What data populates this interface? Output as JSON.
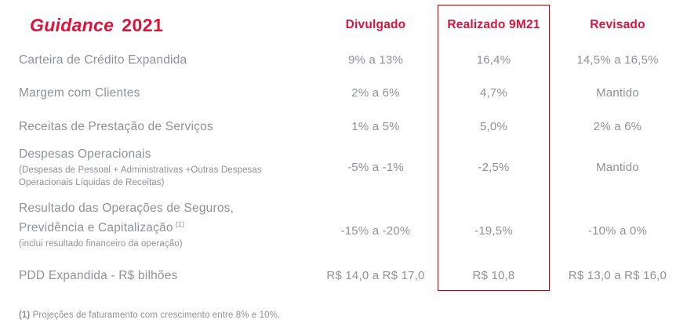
{
  "colors": {
    "accent_red": "#DC143C",
    "box_border_red": "#A01113",
    "text_gray": "#8E9196"
  },
  "title": {
    "brand_word": "Guidance",
    "year": "2021"
  },
  "header": {
    "divulgado": "Divulgado",
    "realizado": "Realizado 9M21",
    "revisado": "Revisado"
  },
  "rows": [
    {
      "label": "Carteira de Crédito Expandida",
      "divulgado": "9% a 13%",
      "realizado": "16,4%",
      "revisado": "14,5% a 16,5%"
    },
    {
      "label": "Margem com Clientes",
      "divulgado": "2% a 6%",
      "realizado": "4,7%",
      "revisado": "Mantido"
    },
    {
      "label": "Receitas de Prestação de Serviços",
      "divulgado": "1% a 5%",
      "realizado": "5,0%",
      "revisado": "2% a 6%"
    },
    {
      "label": "Despesas Operacionais",
      "sublabel": "(Despesas de Pessoal + Administrativas +Outras Despesas Operacionais Líquidas de Receitas)",
      "divulgado": "-5% a -1%",
      "realizado": "-2,5%",
      "revisado": "Mantido"
    },
    {
      "label_line1": "Resultado das Operações de Seguros,",
      "label_line2": "Previdência e Capitalização",
      "label_sup": "(1)",
      "sublabel": "(inclui resultado financeiro da operação)",
      "divulgado": "-15% a -20%",
      "realizado": "-19,5%",
      "revisado": "-10% a 0%"
    },
    {
      "label": "PDD Expandida - R$ bilhões",
      "divulgado": "R$ 14,0 a R$ 17,0",
      "realizado": "R$ 10,8",
      "revisado": "R$ 13,0 a R$ 16,0"
    }
  ],
  "footnote": {
    "marker": "(1)",
    "text": "Projeções de faturamento com crescimento entre 8% e 10%."
  }
}
